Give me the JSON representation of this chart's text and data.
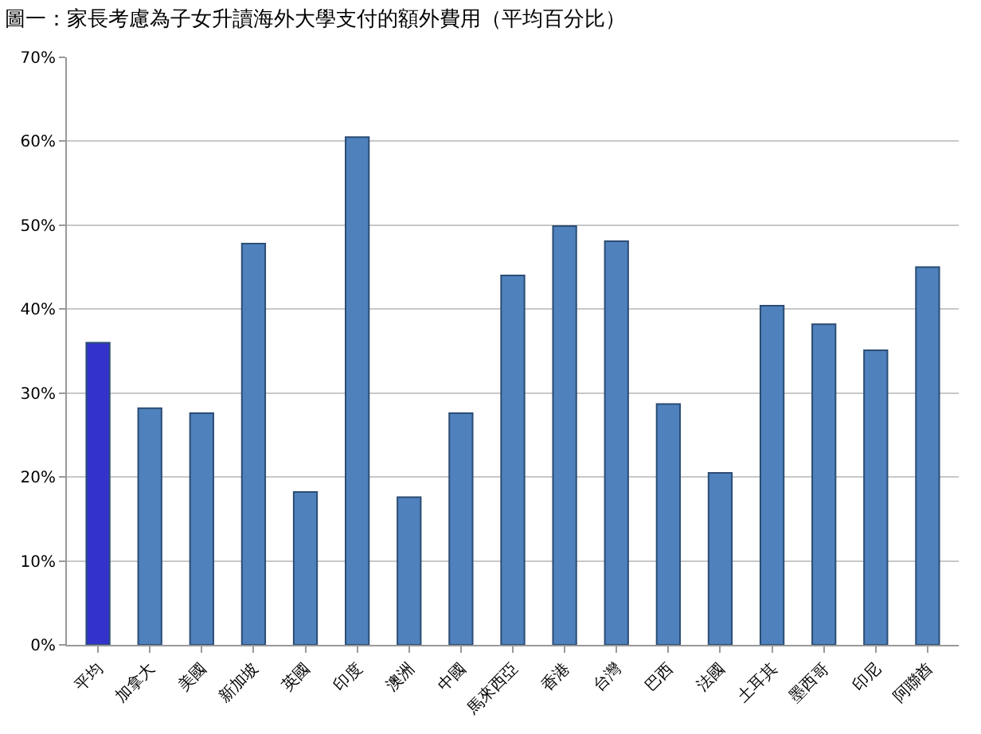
{
  "chart_data": {
    "type": "bar",
    "title": "圖一：家長考慮為子女升讀海外大學支付的額外費用（平均百分比）",
    "categories": [
      "平均",
      "加拿大",
      "美國",
      "新加坡",
      "英國",
      "印度",
      "澳洲",
      "中國",
      "馬來西亞",
      "香港",
      "台灣",
      "巴西",
      "法國",
      "土耳其",
      "墨西哥",
      "印尼",
      "阿聯酋"
    ],
    "values": [
      36,
      28.2,
      27.6,
      47.8,
      18.2,
      60.5,
      17.6,
      27.6,
      44,
      49.9,
      48.1,
      28.7,
      20.5,
      40.4,
      38.2,
      35.1,
      45
    ],
    "colors": [
      "#3333cc",
      "#4f81bd",
      "#4f81bd",
      "#4f81bd",
      "#4f81bd",
      "#4f81bd",
      "#4f81bd",
      "#4f81bd",
      "#4f81bd",
      "#4f81bd",
      "#4f81bd",
      "#4f81bd",
      "#4f81bd",
      "#4f81bd",
      "#4f81bd",
      "#4f81bd",
      "#4f81bd"
    ],
    "ylim": [
      0,
      70
    ],
    "yticks": [
      {
        "value": 0,
        "label": "0%"
      },
      {
        "value": 10,
        "label": "10%"
      },
      {
        "value": 20,
        "label": "20%"
      },
      {
        "value": 30,
        "label": "30%"
      },
      {
        "value": 40,
        "label": "40%"
      },
      {
        "value": 50,
        "label": "50%"
      },
      {
        "value": 60,
        "label": "60%"
      },
      {
        "value": 70,
        "label": "70%"
      }
    ],
    "grid": "y"
  }
}
